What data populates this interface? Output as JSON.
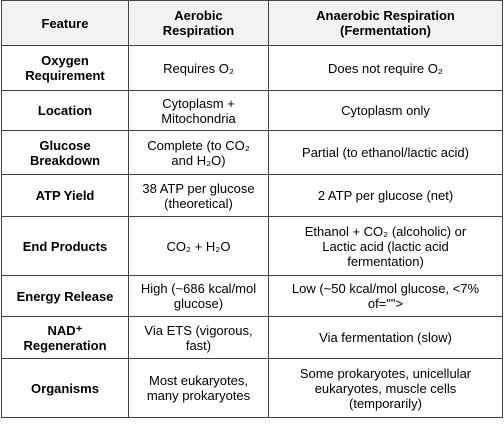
{
  "table": {
    "headers": {
      "feature": "Feature",
      "aerobic_line1": "Aerobic",
      "aerobic_line2": "Respiration",
      "anaerobic_line1": "Anaerobic Respiration",
      "anaerobic_line2": "(Fermentation)"
    },
    "rows": [
      {
        "feature": [
          "Oxygen",
          "Requirement"
        ],
        "aerobic": [
          "Requires O₂"
        ],
        "anaerobic": [
          "Does not require O₂"
        ]
      },
      {
        "feature": [
          "Location"
        ],
        "aerobic": [
          "Cytoplasm +",
          "Mitochondria"
        ],
        "anaerobic": [
          "Cytoplasm only"
        ]
      },
      {
        "feature": [
          "Glucose",
          "Breakdown"
        ],
        "aerobic": [
          "Complete (to CO₂",
          "and H₂O)"
        ],
        "anaerobic": [
          "Partial (to ethanol/lactic acid)"
        ]
      },
      {
        "feature": [
          "ATP Yield"
        ],
        "aerobic": [
          "38 ATP per glucose",
          "(theoretical)"
        ],
        "anaerobic": [
          "2 ATP per glucose (net)"
        ]
      },
      {
        "feature": [
          "End Products"
        ],
        "aerobic": [
          "CO₂ + H₂O"
        ],
        "anaerobic": [
          "Ethanol + CO₂ (alcoholic) or",
          "Lactic acid (lactic acid",
          "fermentation)"
        ]
      },
      {
        "feature": [
          "Energy Release"
        ],
        "aerobic": [
          "High (~686 kcal/mol",
          "glucose)"
        ],
        "anaerobic": [
          "Low (~50 kcal/mol glucose, <7%",
          "of=\"\">"
        ]
      },
      {
        "feature": [
          "NAD⁺",
          "Regeneration"
        ],
        "aerobic": [
          "Via ETS (vigorous,",
          "fast)"
        ],
        "anaerobic": [
          "Via fermentation (slow)"
        ]
      },
      {
        "feature": [
          "Organisms"
        ],
        "aerobic": [
          "Most eukaryotes,",
          "many prokaryotes"
        ],
        "anaerobic": [
          "Some prokaryotes, unicellular",
          "eukaryotes, muscle cells",
          "(temporarily)"
        ]
      }
    ]
  }
}
